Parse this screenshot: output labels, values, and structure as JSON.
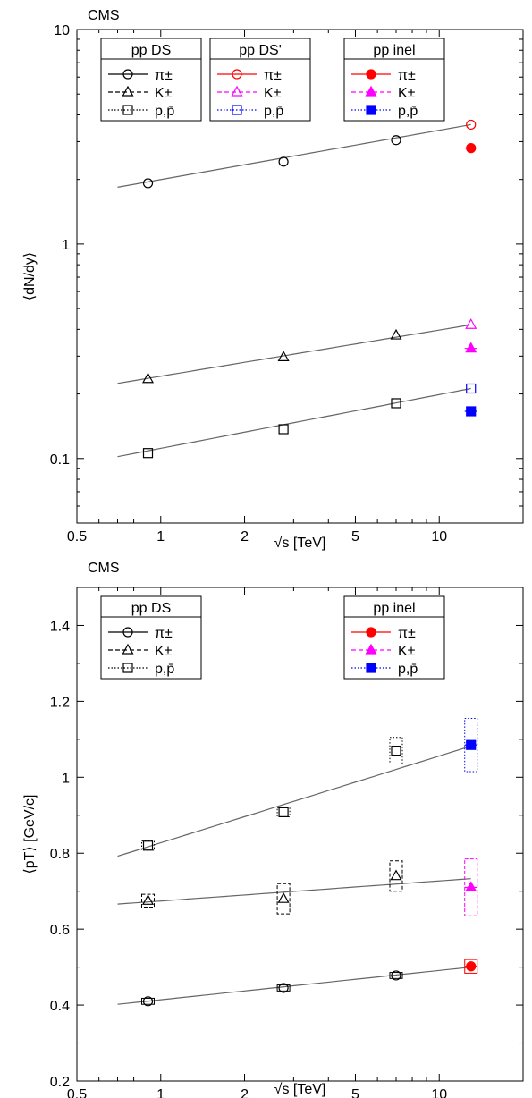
{
  "chart_data": [
    {
      "type": "scatter",
      "title": "CMS",
      "xlabel": "√s [TeV]",
      "ylabel": "⟨dN/dy⟩",
      "x_scale": "log",
      "y_scale": "log",
      "xlim": [
        0.5,
        20
      ],
      "ylim": [
        0.05,
        10
      ],
      "x_ticks": [
        {
          "v": 0.5,
          "t": "0.5"
        },
        {
          "v": 1,
          "t": "1"
        },
        {
          "v": 2,
          "t": "2"
        },
        {
          "v": 5,
          "t": "5"
        },
        {
          "v": 10,
          "t": "10"
        }
      ],
      "y_ticks": [
        {
          "v": 0.1,
          "t": "0.1"
        },
        {
          "v": 1,
          "t": "1"
        },
        {
          "v": 10,
          "t": "10"
        }
      ],
      "legends": [
        {
          "title": "pp DS",
          "entries": [
            {
              "label": "π±",
              "marker": "circle",
              "line": "solid",
              "color": "#000000",
              "fill": false
            },
            {
              "label": "K±",
              "marker": "triangle",
              "line": "dashed",
              "color": "#000000",
              "fill": false
            },
            {
              "label": "p,p̄",
              "marker": "square",
              "line": "dotted",
              "color": "#000000",
              "fill": false
            }
          ]
        },
        {
          "title": "pp DS'",
          "entries": [
            {
              "label": "π±",
              "marker": "circle",
              "line": "solid",
              "color": "#ff0000",
              "fill": false
            },
            {
              "label": "K±",
              "marker": "triangle",
              "line": "dashed",
              "color": "#ff00ff",
              "fill": false
            },
            {
              "label": "p,p̄",
              "marker": "square",
              "line": "dotted",
              "color": "#0000ff",
              "fill": false
            }
          ]
        },
        {
          "title": "pp inel",
          "entries": [
            {
              "label": "π±",
              "marker": "circle",
              "line": "solid",
              "color": "#ff0000",
              "fill": true
            },
            {
              "label": "K±",
              "marker": "triangle",
              "line": "dashed",
              "color": "#ff00ff",
              "fill": true
            },
            {
              "label": "p,p̄",
              "marker": "square",
              "line": "dotted",
              "color": "#0000ff",
              "fill": true
            }
          ]
        }
      ],
      "series": [
        {
          "name": "pp DS π±",
          "marker": "circle",
          "color": "#000000",
          "fill": false,
          "x": [
            0.9,
            2.76,
            7.0
          ],
          "y": [
            1.92,
            2.42,
            3.05
          ]
        },
        {
          "name": "pp DS K±",
          "marker": "triangle",
          "color": "#000000",
          "fill": false,
          "x": [
            0.9,
            2.76,
            7.0
          ],
          "y": [
            0.235,
            0.297,
            0.375
          ]
        },
        {
          "name": "pp DS p,p̄",
          "marker": "square",
          "color": "#000000",
          "fill": false,
          "x": [
            0.9,
            2.76,
            7.0
          ],
          "y": [
            0.106,
            0.137,
            0.181
          ]
        },
        {
          "name": "pp DS' π±",
          "marker": "circle",
          "color": "#ff0000",
          "fill": false,
          "x": [
            13
          ],
          "y": [
            3.6
          ]
        },
        {
          "name": "pp DS' K±",
          "marker": "triangle",
          "color": "#ff00ff",
          "fill": false,
          "x": [
            13
          ],
          "y": [
            0.42
          ]
        },
        {
          "name": "pp DS' p,p̄",
          "marker": "square",
          "color": "#0000ff",
          "fill": false,
          "x": [
            13
          ],
          "y": [
            0.212
          ]
        },
        {
          "name": "pp inel π±",
          "marker": "circle",
          "color": "#ff0000",
          "fill": true,
          "x": [
            13
          ],
          "y": [
            2.8
          ]
        },
        {
          "name": "pp inel K±",
          "marker": "triangle",
          "color": "#ff00ff",
          "fill": true,
          "x": [
            13
          ],
          "y": [
            0.326
          ]
        },
        {
          "name": "pp inel p,p̄",
          "marker": "square",
          "color": "#0000ff",
          "fill": true,
          "x": [
            13
          ],
          "y": [
            0.166
          ]
        }
      ],
      "fits": [
        {
          "x": [
            0.7,
            13
          ],
          "y": [
            1.84,
            3.6
          ]
        },
        {
          "x": [
            0.7,
            13
          ],
          "y": [
            0.224,
            0.42
          ]
        },
        {
          "x": [
            0.7,
            13
          ],
          "y": [
            0.102,
            0.212
          ]
        }
      ]
    },
    {
      "type": "scatter",
      "title": "CMS",
      "xlabel": "√s [TeV]",
      "ylabel": "⟨pT⟩ [GeV/c]",
      "x_scale": "log",
      "y_scale": "linear",
      "xlim": [
        0.5,
        20
      ],
      "ylim": [
        0.2,
        1.5
      ],
      "x_ticks": [
        {
          "v": 0.5,
          "t": "0.5"
        },
        {
          "v": 1,
          "t": "1"
        },
        {
          "v": 2,
          "t": "2"
        },
        {
          "v": 5,
          "t": "5"
        },
        {
          "v": 10,
          "t": "10"
        }
      ],
      "y_ticks": [
        {
          "v": 0.2,
          "t": "0.2"
        },
        {
          "v": 0.4,
          "t": "0.4"
        },
        {
          "v": 0.6,
          "t": "0.6"
        },
        {
          "v": 0.8,
          "t": "0.8"
        },
        {
          "v": 1,
          "t": "1"
        },
        {
          "v": 1.2,
          "t": "1.2"
        },
        {
          "v": 1.4,
          "t": "1.4"
        }
      ],
      "legends": [
        {
          "title": "pp DS",
          "entries": [
            {
              "label": "π±",
              "marker": "circle",
              "line": "solid",
              "color": "#000000",
              "fill": false
            },
            {
              "label": "K±",
              "marker": "triangle",
              "line": "dashed",
              "color": "#000000",
              "fill": false
            },
            {
              "label": "p,p̄",
              "marker": "square",
              "line": "dotted",
              "color": "#000000",
              "fill": false
            }
          ]
        },
        {
          "title": "pp inel",
          "entries": [
            {
              "label": "π±",
              "marker": "circle",
              "line": "solid",
              "color": "#ff0000",
              "fill": true
            },
            {
              "label": "K±",
              "marker": "triangle",
              "line": "dashed",
              "color": "#ff00ff",
              "fill": true
            },
            {
              "label": "p,p̄",
              "marker": "square",
              "line": "dotted",
              "color": "#0000ff",
              "fill": true
            }
          ]
        }
      ],
      "series": [
        {
          "name": "pp DS π±",
          "marker": "circle",
          "color": "#000000",
          "fill": false,
          "x": [
            0.9,
            2.76,
            7.0
          ],
          "y": [
            0.41,
            0.445,
            0.478
          ],
          "syst": [
            0.008,
            0.008,
            0.008
          ]
        },
        {
          "name": "pp DS K±",
          "marker": "triangle",
          "color": "#000000",
          "fill": false,
          "x": [
            0.9,
            2.76,
            7.0
          ],
          "y": [
            0.675,
            0.68,
            0.74
          ],
          "syst": [
            0.017,
            0.04,
            0.04
          ]
        },
        {
          "name": "pp DS p,p̄",
          "marker": "square",
          "color": "#000000",
          "fill": false,
          "x": [
            0.9,
            2.76,
            7.0
          ],
          "y": [
            0.82,
            0.908,
            1.07
          ],
          "syst": [
            0.012,
            0.012,
            0.035
          ]
        },
        {
          "name": "pp inel π±",
          "marker": "circle",
          "color": "#ff0000",
          "fill": true,
          "x": [
            13
          ],
          "y": [
            0.502
          ],
          "syst": [
            0.018
          ]
        },
        {
          "name": "pp inel K±",
          "marker": "triangle",
          "color": "#ff00ff",
          "fill": true,
          "x": [
            13
          ],
          "y": [
            0.71
          ],
          "syst": [
            0.075
          ]
        },
        {
          "name": "pp inel p,p̄",
          "marker": "square",
          "color": "#0000ff",
          "fill": true,
          "x": [
            13
          ],
          "y": [
            1.085
          ],
          "syst": [
            0.07
          ]
        }
      ],
      "fits": [
        {
          "x": [
            0.7,
            13
          ],
          "y": [
            0.402,
            0.5
          ]
        },
        {
          "x": [
            0.7,
            13
          ],
          "y": [
            0.666,
            0.733
          ]
        },
        {
          "x": [
            0.7,
            13
          ],
          "y": [
            0.792,
            1.082
          ]
        }
      ]
    }
  ]
}
